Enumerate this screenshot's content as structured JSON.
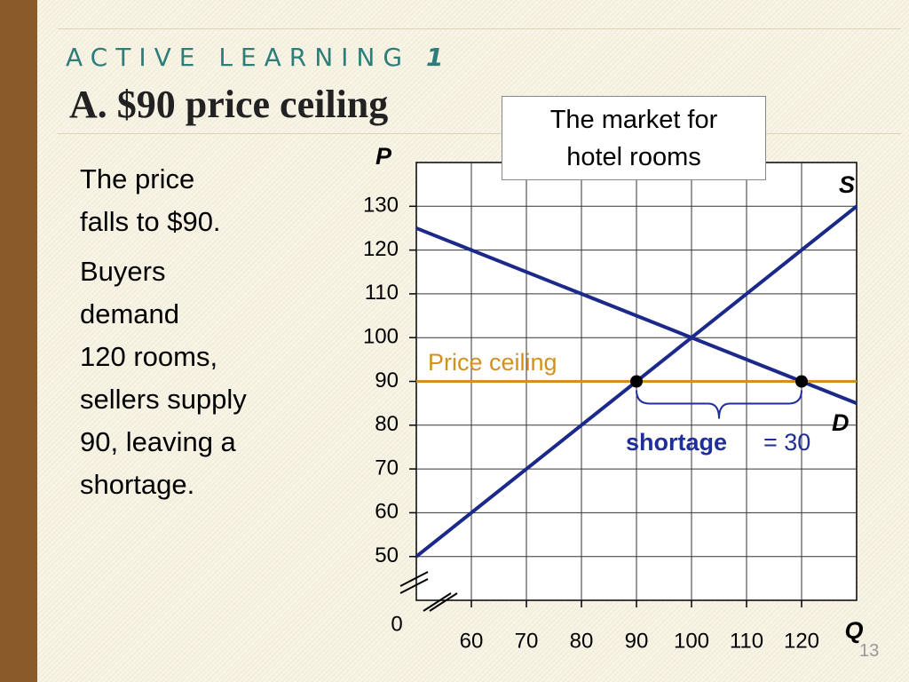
{
  "slide": {
    "kicker": "ACTIVE LEARNING",
    "kicker_number": "1",
    "title": "A.  $90 price ceiling",
    "paragraphs": [
      [
        "The price",
        "falls to $90."
      ],
      [
        "Buyers",
        "demand",
        "120 rooms,",
        "sellers supply",
        "90, leaving a",
        "shortage."
      ]
    ],
    "box_lines": [
      "The market for",
      "hotel rooms"
    ],
    "page_number": "13"
  },
  "chart_data": {
    "type": "line",
    "y_label": "P",
    "x_label": "Q",
    "origin_label": "0",
    "xlim": [
      50,
      130
    ],
    "ylim": [
      40,
      140
    ],
    "xticks": [
      60,
      70,
      80,
      90,
      100,
      110,
      120
    ],
    "yticks": [
      50,
      60,
      70,
      80,
      90,
      100,
      110,
      120,
      130
    ],
    "grid": true,
    "series": [
      {
        "name": "S",
        "color": "#1b2a8a",
        "x": [
          50,
          130
        ],
        "values": [
          50,
          130
        ]
      },
      {
        "name": "D",
        "color": "#1b2a8a",
        "x": [
          50,
          130
        ],
        "values": [
          125,
          85
        ]
      },
      {
        "name": "Price ceiling",
        "color": "#d4901e",
        "x": [
          50,
          130
        ],
        "values": [
          90,
          90
        ]
      }
    ],
    "points": {
      "color": "#000000",
      "x": [
        90,
        120
      ],
      "values": [
        90,
        90
      ]
    },
    "shortage": {
      "label": "shortage",
      "value": 30,
      "value_label": "= 30",
      "color": "#1f2f9a"
    }
  }
}
